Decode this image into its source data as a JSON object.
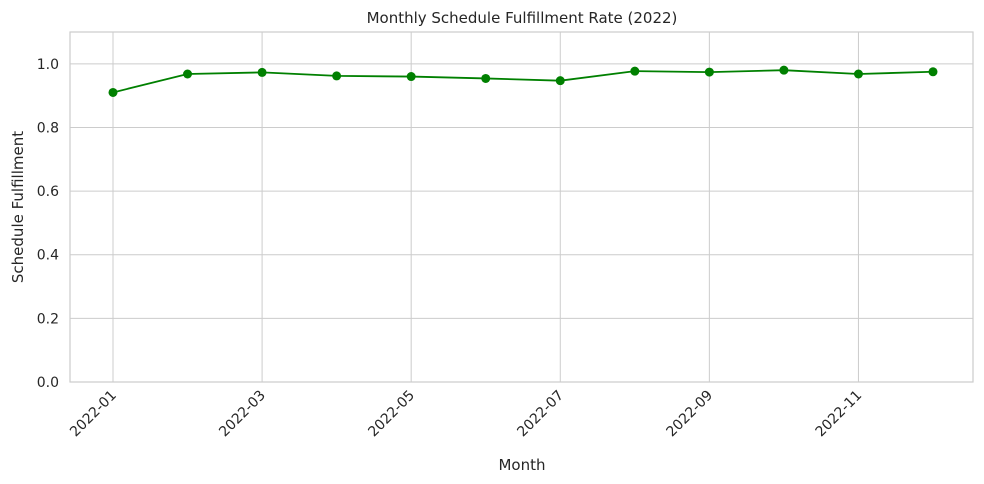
{
  "chart_data": {
    "type": "line",
    "title": "Monthly Schedule Fulfillment Rate (2022)",
    "xlabel": "Month",
    "ylabel": "Schedule Fulfillment",
    "x": [
      "2022-01",
      "2022-02",
      "2022-03",
      "2022-04",
      "2022-05",
      "2022-06",
      "2022-07",
      "2022-08",
      "2022-09",
      "2022-10",
      "2022-11",
      "2022-12"
    ],
    "x_tick_labels": [
      "2022-01",
      "2022-03",
      "2022-05",
      "2022-07",
      "2022-09",
      "2022-11"
    ],
    "y_ticks": [
      "0.0",
      "0.2",
      "0.4",
      "0.6",
      "0.8",
      "1.0"
    ],
    "ylim": [
      0,
      1.1
    ],
    "grid": true,
    "series": [
      {
        "values": [
          0.91,
          0.968,
          0.973,
          0.962,
          0.96,
          0.954,
          0.947,
          0.977,
          0.974,
          0.98,
          0.968,
          0.975
        ],
        "color": "#008000",
        "marker": "circle"
      }
    ]
  }
}
